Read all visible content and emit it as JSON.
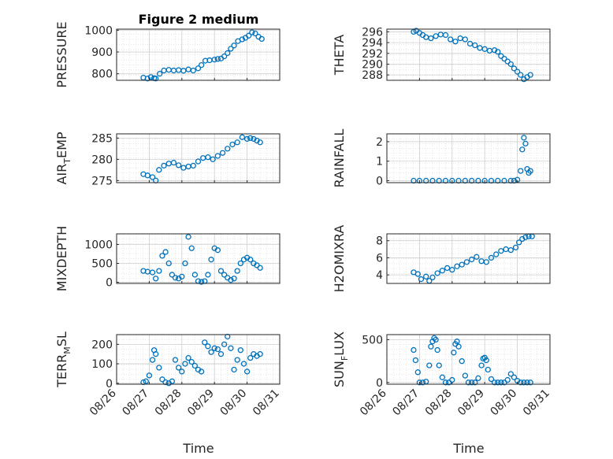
{
  "figure": {
    "title": "Figure 2 medium",
    "xlabel": "Time"
  },
  "series_color": "#0072BD",
  "chart_data": [
    {
      "type": "scatter",
      "ylabel": "PRESSURE",
      "ylabel_sub": "",
      "ylabel_tail": "",
      "ylim": [
        770,
        1005
      ],
      "yticks": [
        800,
        900,
        1000
      ],
      "xlim": [
        0,
        5
      ],
      "x": [
        0.82,
        0.95,
        1.05,
        1.15,
        1.2,
        1.32,
        1.45,
        1.6,
        1.75,
        1.9,
        2.05,
        2.2,
        2.35,
        2.5,
        2.6,
        2.72,
        2.85,
        3.0,
        3.1,
        3.2,
        3.3,
        3.4,
        3.5,
        3.6,
        3.72,
        3.85,
        3.95,
        4.05,
        4.15,
        4.25,
        4.35,
        4.45
      ],
      "y": [
        782,
        778,
        785,
        780,
        778,
        800,
        815,
        818,
        815,
        817,
        814,
        820,
        815,
        825,
        840,
        860,
        862,
        865,
        868,
        870,
        880,
        895,
        915,
        930,
        950,
        958,
        965,
        975,
        990,
        985,
        970,
        960
      ]
    },
    {
      "type": "scatter",
      "ylabel": "THETA",
      "ylabel_sub": "",
      "ylabel_tail": "",
      "ylim": [
        287,
        296.5
      ],
      "yticks": [
        288,
        290,
        292,
        294,
        296
      ],
      "xlim": [
        0,
        5
      ],
      "x": [
        0.82,
        0.9,
        1.0,
        1.1,
        1.2,
        1.35,
        1.5,
        1.65,
        1.8,
        1.95,
        2.1,
        2.25,
        2.4,
        2.55,
        2.7,
        2.85,
        3.0,
        3.15,
        3.3,
        3.4,
        3.5,
        3.6,
        3.7,
        3.8,
        3.9,
        4.0,
        4.1,
        4.2,
        4.3,
        4.4
      ],
      "y": [
        296,
        296.2,
        295.8,
        295.4,
        295.0,
        294.8,
        295.2,
        295.5,
        295.4,
        294.6,
        294.2,
        294.8,
        294.6,
        293.8,
        293.5,
        293.0,
        292.8,
        292.5,
        292.6,
        292.3,
        291.5,
        291.0,
        290.5,
        290.0,
        289.2,
        288.6,
        288.0,
        287.2,
        287.6,
        288.0
      ]
    },
    {
      "type": "scatter",
      "ylabel": "AIR",
      "ylabel_sub": "T",
      "ylabel_tail": "EMP",
      "ylim": [
        274.5,
        286
      ],
      "yticks": [
        275,
        280,
        285
      ],
      "xlim": [
        0,
        5
      ],
      "x": [
        0.82,
        0.95,
        1.1,
        1.2,
        1.3,
        1.45,
        1.6,
        1.75,
        1.9,
        2.05,
        2.2,
        2.35,
        2.5,
        2.65,
        2.8,
        2.95,
        3.1,
        3.25,
        3.4,
        3.55,
        3.7,
        3.85,
        4.0,
        4.1,
        4.2,
        4.3,
        4.4
      ],
      "y": [
        276.5,
        276.2,
        275.8,
        275.0,
        277.5,
        278.5,
        279.0,
        279.2,
        278.6,
        278.0,
        278.3,
        278.5,
        279.5,
        280.3,
        280.5,
        280.0,
        280.8,
        281.5,
        282.5,
        283.5,
        284.0,
        285.2,
        284.8,
        285.0,
        284.8,
        284.4,
        284.0
      ]
    },
    {
      "type": "scatter",
      "ylabel": "RAINFALL",
      "ylabel_sub": "",
      "ylabel_tail": "",
      "ylim": [
        -0.1,
        2.4
      ],
      "yticks": [
        0,
        1,
        2
      ],
      "xlim": [
        0,
        5
      ],
      "x": [
        0.82,
        1.0,
        1.2,
        1.4,
        1.6,
        1.8,
        2.0,
        2.2,
        2.4,
        2.6,
        2.8,
        3.0,
        3.2,
        3.4,
        3.6,
        3.8,
        3.9,
        4.0,
        4.1,
        4.15,
        4.2,
        4.25,
        4.3,
        4.35,
        4.4
      ],
      "y": [
        0,
        0,
        0,
        0,
        0,
        0,
        0,
        0,
        0,
        0,
        0,
        0,
        0,
        0,
        0,
        0,
        0,
        0.05,
        0.5,
        1.6,
        2.2,
        1.9,
        0.6,
        0.4,
        0.5
      ]
    },
    {
      "type": "scatter",
      "ylabel": "MIXDEPTH",
      "ylabel_sub": "",
      "ylabel_tail": "",
      "ylim": [
        -30,
        1280
      ],
      "yticks": [
        0,
        500,
        1000
      ],
      "xlim": [
        0,
        5
      ],
      "x": [
        0.82,
        0.95,
        1.1,
        1.2,
        1.3,
        1.4,
        1.5,
        1.6,
        1.7,
        1.8,
        1.9,
        2.0,
        2.1,
        2.2,
        2.3,
        2.4,
        2.5,
        2.6,
        2.7,
        2.8,
        2.9,
        3.0,
        3.1,
        3.2,
        3.3,
        3.4,
        3.5,
        3.6,
        3.7,
        3.8,
        3.9,
        4.0,
        4.1,
        4.2,
        4.3,
        4.4
      ],
      "y": [
        300,
        280,
        260,
        100,
        300,
        700,
        800,
        500,
        200,
        120,
        100,
        150,
        500,
        1200,
        900,
        200,
        30,
        10,
        30,
        200,
        600,
        900,
        850,
        300,
        200,
        120,
        60,
        100,
        300,
        500,
        600,
        650,
        600,
        500,
        450,
        380
      ]
    },
    {
      "type": "scatter",
      "ylabel": "H2OMIXRA",
      "ylabel_sub": "",
      "ylabel_tail": "",
      "ylim": [
        3,
        8.8
      ],
      "yticks": [
        4,
        6,
        8
      ],
      "xlim": [
        0,
        5
      ],
      "x": [
        0.82,
        0.95,
        1.05,
        1.2,
        1.3,
        1.4,
        1.55,
        1.7,
        1.85,
        2.0,
        2.15,
        2.3,
        2.45,
        2.6,
        2.75,
        2.9,
        3.05,
        3.2,
        3.35,
        3.5,
        3.65,
        3.8,
        3.95,
        4.05,
        4.15,
        4.25,
        4.35,
        4.45
      ],
      "y": [
        4.3,
        4.1,
        3.5,
        3.8,
        3.3,
        3.7,
        4.2,
        4.5,
        4.8,
        4.6,
        5.0,
        5.2,
        5.5,
        5.8,
        6.1,
        5.6,
        5.5,
        6.0,
        6.4,
        6.8,
        7.0,
        6.9,
        7.2,
        7.8,
        8.2,
        8.4,
        8.5,
        8.5
      ]
    },
    {
      "type": "scatter",
      "ylabel": "TERR",
      "ylabel_sub": "M",
      "ylabel_tail": "SL",
      "ylim": [
        -5,
        250
      ],
      "yticks": [
        0,
        100,
        200
      ],
      "xlim": [
        0,
        5
      ],
      "x": [
        0.82,
        0.9,
        1.0,
        1.1,
        1.15,
        1.2,
        1.3,
        1.4,
        1.5,
        1.6,
        1.7,
        1.8,
        1.9,
        2.0,
        2.1,
        2.2,
        2.3,
        2.4,
        2.5,
        2.6,
        2.7,
        2.8,
        2.9,
        3.0,
        3.1,
        3.2,
        3.3,
        3.4,
        3.5,
        3.6,
        3.7,
        3.8,
        3.9,
        4.0,
        4.1,
        4.2,
        4.3,
        4.4
      ],
      "y": [
        5,
        10,
        40,
        120,
        170,
        150,
        80,
        20,
        5,
        0,
        10,
        120,
        80,
        60,
        100,
        130,
        110,
        90,
        70,
        60,
        210,
        190,
        160,
        180,
        175,
        150,
        200,
        240,
        180,
        70,
        120,
        170,
        100,
        60,
        130,
        150,
        140,
        150
      ]
    },
    {
      "type": "scatter",
      "ylabel": "SUN",
      "ylabel_sub": "F",
      "ylabel_tail": "LUX",
      "ylim": [
        -20,
        560
      ],
      "yticks": [
        0,
        500
      ],
      "xlim": [
        0,
        5
      ],
      "x": [
        0.82,
        0.88,
        0.95,
        1.0,
        1.1,
        1.2,
        1.3,
        1.35,
        1.4,
        1.45,
        1.5,
        1.55,
        1.6,
        1.7,
        1.8,
        1.9,
        2.0,
        2.05,
        2.1,
        2.15,
        2.2,
        2.3,
        2.4,
        2.5,
        2.6,
        2.7,
        2.8,
        2.9,
        2.95,
        3.0,
        3.05,
        3.1,
        3.2,
        3.3,
        3.4,
        3.5,
        3.6,
        3.7,
        3.8,
        3.9,
        4.0,
        4.1,
        4.2,
        4.3,
        4.4
      ],
      "y": [
        380,
        260,
        120,
        0,
        0,
        10,
        200,
        420,
        480,
        520,
        500,
        380,
        200,
        60,
        0,
        0,
        30,
        350,
        450,
        480,
        420,
        250,
        80,
        0,
        0,
        0,
        50,
        200,
        280,
        290,
        260,
        150,
        40,
        0,
        0,
        0,
        0,
        30,
        100,
        60,
        20,
        0,
        0,
        0,
        0
      ]
    }
  ],
  "xticks": [
    "08/26",
    "08/27",
    "08/28",
    "08/29",
    "08/30",
    "08/31"
  ]
}
